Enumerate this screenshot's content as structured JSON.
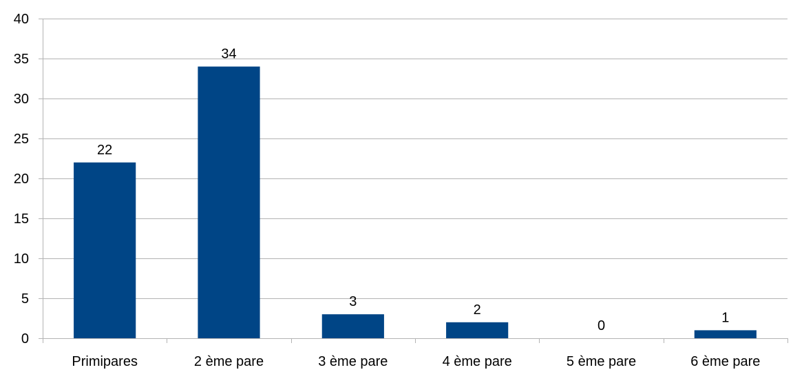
{
  "chart_data": {
    "type": "bar",
    "categories": [
      "Primipares",
      "2 ème pare",
      "3 ème pare",
      "4 ème pare",
      "5 ème pare",
      "6 ème pare"
    ],
    "values": [
      22,
      34,
      3,
      2,
      0,
      1
    ],
    "data_labels": [
      "22",
      "34",
      "3",
      "2",
      "0",
      "1"
    ],
    "title": "",
    "xlabel": "",
    "ylabel": "",
    "ylim": [
      0,
      40
    ],
    "yticks": [
      0,
      5,
      10,
      15,
      20,
      25,
      30,
      35,
      40
    ],
    "ytick_labels": [
      "0",
      "5",
      "10",
      "15",
      "20",
      "25",
      "30",
      "35",
      "40"
    ],
    "grid": true,
    "legend": "none",
    "bar_color": "#004586"
  }
}
